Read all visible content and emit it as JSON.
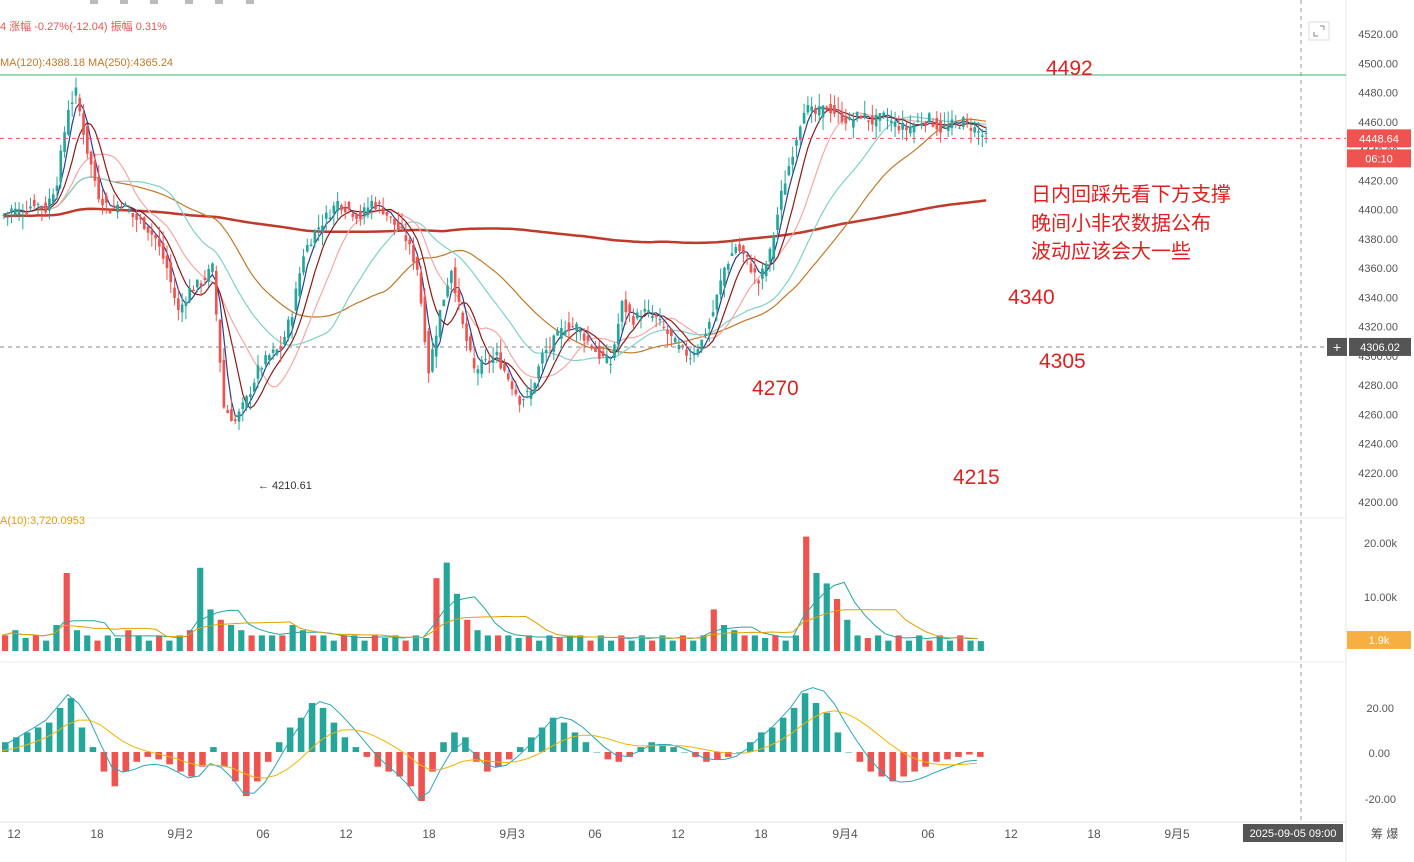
{
  "header": {
    "change_text": "4  涨幅 -0.27%(-12.04)  振幅 0.31%",
    "ma_text": "MA(120):4388.18  MA(250):4365.24",
    "vol_ma_text": "A(10):3,720.0953"
  },
  "price_axis": {
    "ticks": [
      "4520.00",
      "4500.00",
      "4480.00",
      "4460.00",
      "4440.00",
      "4420.00",
      "4400.00",
      "4380.00",
      "4360.00",
      "4340.00",
      "4320.00",
      "4300.00",
      "4280.00",
      "4260.00",
      "4240.00",
      "4220.00",
      "4200.00"
    ],
    "tick_values": [
      4520,
      4500,
      4480,
      4460,
      4440,
      4420,
      4400,
      4380,
      4360,
      4340,
      4320,
      4300,
      4280,
      4260,
      4240,
      4220,
      4200
    ],
    "last_price": "4448.64",
    "countdown": "06:10",
    "crosshair_price": "4306.02"
  },
  "volume_axis": {
    "ticks": [
      "20.00k",
      "10.00k"
    ],
    "last_volume": "1.9k"
  },
  "macd_axis": {
    "ticks": [
      "20.00",
      "0.00",
      "-20.00"
    ]
  },
  "time_axis": {
    "labels": [
      "12",
      "18",
      "9月2",
      "06",
      "12",
      "18",
      "9月3",
      "06",
      "12",
      "18",
      "9月4",
      "06",
      "12",
      "18",
      "9月5"
    ],
    "crosshair_time": "2025-09-05 09:00",
    "bottom_right": "筹  爆"
  },
  "annotations": {
    "resistance": "4492",
    "level_4340": "4340",
    "level_4305": "4305",
    "level_4270": "4270",
    "level_4215": "4215",
    "low_marker": "← 4210.61",
    "note_lines": [
      "日内回踩先看下方支撑",
      "晚间小非农数据公布",
      "波动应该会大一些"
    ]
  },
  "colors": {
    "up": "#26a69a",
    "down": "#ef5350",
    "ma_orange": "#c0792a",
    "ma_red": "#c0392b",
    "ma_teal": "#7fd1c7",
    "ma_pink": "#f4a7a7",
    "ma_blue": "#2c3e8f",
    "note_red": "#e02020",
    "resistance_line": "#3cb371",
    "axis_text": "#555555"
  },
  "chart_data": {
    "type": "candlestick",
    "instrument_price_range": [
      4200,
      4520
    ],
    "key_levels": {
      "resistance": 4492,
      "last": 4448.64,
      "crosshair": 4306.02,
      "support_1": 4340,
      "support_2": 4305,
      "support_3": 4270,
      "support_4": 4215,
      "session_low": 4210.61
    },
    "moving_averages": {
      "MA120": 4388.18,
      "MA250": 4365.24
    },
    "volume_ma10": 3720.0953,
    "x_labels": [
      "12",
      "18",
      "9月2",
      "06",
      "12",
      "18",
      "9月3",
      "06",
      "12",
      "18",
      "9月4",
      "06",
      "12",
      "18",
      "9月5"
    ],
    "price_path": [
      [
        0,
        4395
      ],
      [
        3,
        4400
      ],
      [
        6,
        4398
      ],
      [
        9,
        4405
      ],
      [
        12,
        4400
      ],
      [
        15,
        4420
      ],
      [
        18,
        4470
      ],
      [
        20,
        4480
      ],
      [
        23,
        4440
      ],
      [
        26,
        4410
      ],
      [
        29,
        4400
      ],
      [
        32,
        4405
      ],
      [
        35,
        4395
      ],
      [
        38,
        4390
      ],
      [
        41,
        4380
      ],
      [
        44,
        4360
      ],
      [
        47,
        4330
      ],
      [
        50,
        4345
      ],
      [
        53,
        4350
      ],
      [
        56,
        4360
      ],
      [
        59,
        4265
      ],
      [
        62,
        4255
      ],
      [
        65,
        4270
      ],
      [
        68,
        4290
      ],
      [
        71,
        4300
      ],
      [
        74,
        4305
      ],
      [
        77,
        4330
      ],
      [
        80,
        4370
      ],
      [
        83,
        4385
      ],
      [
        86,
        4395
      ],
      [
        89,
        4405
      ],
      [
        92,
        4400
      ],
      [
        95,
        4395
      ],
      [
        98,
        4405
      ],
      [
        101,
        4400
      ],
      [
        104,
        4390
      ],
      [
        107,
        4380
      ],
      [
        110,
        4360
      ],
      [
        113,
        4290
      ],
      [
        116,
        4330
      ],
      [
        119,
        4360
      ],
      [
        122,
        4320
      ],
      [
        125,
        4290
      ],
      [
        128,
        4295
      ],
      [
        131,
        4300
      ],
      [
        134,
        4285
      ],
      [
        137,
        4270
      ],
      [
        140,
        4275
      ],
      [
        143,
        4300
      ],
      [
        146,
        4310
      ],
      [
        149,
        4320
      ],
      [
        152,
        4320
      ],
      [
        155,
        4310
      ],
      [
        158,
        4300
      ],
      [
        161,
        4295
      ],
      [
        164,
        4335
      ],
      [
        167,
        4325
      ],
      [
        170,
        4330
      ],
      [
        173,
        4325
      ],
      [
        176,
        4315
      ],
      [
        179,
        4305
      ],
      [
        182,
        4300
      ],
      [
        185,
        4310
      ],
      [
        188,
        4330
      ],
      [
        191,
        4360
      ],
      [
        194,
        4375
      ],
      [
        197,
        4365
      ],
      [
        200,
        4350
      ],
      [
        203,
        4370
      ],
      [
        206,
        4410
      ],
      [
        209,
        4440
      ],
      [
        212,
        4470
      ],
      [
        215,
        4465
      ],
      [
        218,
        4470
      ],
      [
        221,
        4465
      ],
      [
        224,
        4460
      ],
      [
        227,
        4465
      ],
      [
        230,
        4460
      ],
      [
        233,
        4463
      ],
      [
        236,
        4458
      ],
      [
        239,
        4455
      ],
      [
        242,
        4460
      ],
      [
        245,
        4462
      ],
      [
        248,
        4455
      ],
      [
        251,
        4458
      ],
      [
        254,
        4460
      ],
      [
        257,
        4455
      ],
      [
        260,
        4448.64
      ]
    ],
    "volume_bars_k_sample": [
      3,
      4,
      2.5,
      3,
      2,
      5,
      15,
      4,
      3,
      2,
      3,
      2.5,
      4,
      3,
      2,
      3,
      2,
      3,
      4,
      16,
      8,
      6,
      5,
      4,
      3,
      3,
      3,
      3,
      5,
      4,
      3,
      3,
      2,
      3,
      3,
      2,
      3,
      2.5,
      3,
      2,
      3,
      2.5,
      14,
      17,
      11,
      6,
      4,
      3,
      3,
      3,
      2.5,
      3,
      2,
      3,
      2.5,
      3,
      3,
      2,
      3,
      2,
      3,
      2,
      3,
      2,
      3,
      2,
      3,
      2,
      3,
      8,
      5,
      4,
      3,
      3,
      2.5,
      3,
      2,
      3,
      22,
      15,
      13,
      10,
      6,
      3,
      2.5,
      3,
      2,
      3,
      2,
      3,
      2,
      3,
      2,
      3,
      2,
      1.9
    ],
    "macd_hist_sample": [
      4,
      6,
      8,
      10,
      12,
      18,
      22,
      10,
      2,
      -8,
      -14,
      -8,
      -4,
      -2,
      -3,
      -5,
      -8,
      -10,
      -6,
      2,
      -6,
      -12,
      -18,
      -12,
      -4,
      4,
      10,
      14,
      20,
      18,
      12,
      6,
      2,
      -2,
      -6,
      -8,
      -10,
      -14,
      -20,
      -8,
      4,
      8,
      6,
      -4,
      -8,
      -6,
      -3,
      2,
      6,
      10,
      14,
      12,
      8,
      4,
      0,
      -3,
      -4,
      -2,
      2,
      4,
      3,
      2,
      0,
      -2,
      -4,
      -3,
      -2,
      0,
      4,
      8,
      10,
      14,
      18,
      24,
      20,
      16,
      8,
      0,
      -4,
      -8,
      -10,
      -12,
      -10,
      -8,
      -6,
      -4,
      -3,
      -2,
      -1,
      -2
    ],
    "macd_range": [
      -25,
      35
    ],
    "volume_range_k": [
      0,
      25
    ]
  }
}
